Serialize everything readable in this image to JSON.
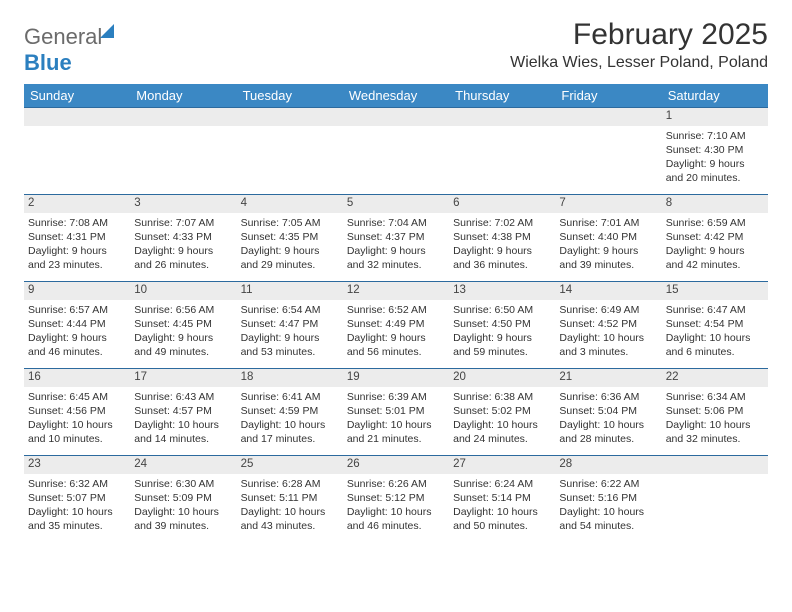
{
  "logo": {
    "word1": "General",
    "word2": "Blue"
  },
  "title": "February 2025",
  "location": "Wielka Wies, Lesser Poland, Poland",
  "colors": {
    "header_bg": "#3b88c4",
    "header_text": "#ffffff",
    "rule": "#2c6a9e",
    "daynum_bg": "#ececec",
    "logo_gray": "#6b6b6b",
    "logo_blue": "#2b7fbf"
  },
  "day_headers": [
    "Sunday",
    "Monday",
    "Tuesday",
    "Wednesday",
    "Thursday",
    "Friday",
    "Saturday"
  ],
  "weeks": [
    [
      {
        "day": "",
        "sunrise": "",
        "sunset": "",
        "daylight": ""
      },
      {
        "day": "",
        "sunrise": "",
        "sunset": "",
        "daylight": ""
      },
      {
        "day": "",
        "sunrise": "",
        "sunset": "",
        "daylight": ""
      },
      {
        "day": "",
        "sunrise": "",
        "sunset": "",
        "daylight": ""
      },
      {
        "day": "",
        "sunrise": "",
        "sunset": "",
        "daylight": ""
      },
      {
        "day": "",
        "sunrise": "",
        "sunset": "",
        "daylight": ""
      },
      {
        "day": "1",
        "sunrise": "Sunrise: 7:10 AM",
        "sunset": "Sunset: 4:30 PM",
        "daylight": "Daylight: 9 hours and 20 minutes."
      }
    ],
    [
      {
        "day": "2",
        "sunrise": "Sunrise: 7:08 AM",
        "sunset": "Sunset: 4:31 PM",
        "daylight": "Daylight: 9 hours and 23 minutes."
      },
      {
        "day": "3",
        "sunrise": "Sunrise: 7:07 AM",
        "sunset": "Sunset: 4:33 PM",
        "daylight": "Daylight: 9 hours and 26 minutes."
      },
      {
        "day": "4",
        "sunrise": "Sunrise: 7:05 AM",
        "sunset": "Sunset: 4:35 PM",
        "daylight": "Daylight: 9 hours and 29 minutes."
      },
      {
        "day": "5",
        "sunrise": "Sunrise: 7:04 AM",
        "sunset": "Sunset: 4:37 PM",
        "daylight": "Daylight: 9 hours and 32 minutes."
      },
      {
        "day": "6",
        "sunrise": "Sunrise: 7:02 AM",
        "sunset": "Sunset: 4:38 PM",
        "daylight": "Daylight: 9 hours and 36 minutes."
      },
      {
        "day": "7",
        "sunrise": "Sunrise: 7:01 AM",
        "sunset": "Sunset: 4:40 PM",
        "daylight": "Daylight: 9 hours and 39 minutes."
      },
      {
        "day": "8",
        "sunrise": "Sunrise: 6:59 AM",
        "sunset": "Sunset: 4:42 PM",
        "daylight": "Daylight: 9 hours and 42 minutes."
      }
    ],
    [
      {
        "day": "9",
        "sunrise": "Sunrise: 6:57 AM",
        "sunset": "Sunset: 4:44 PM",
        "daylight": "Daylight: 9 hours and 46 minutes."
      },
      {
        "day": "10",
        "sunrise": "Sunrise: 6:56 AM",
        "sunset": "Sunset: 4:45 PM",
        "daylight": "Daylight: 9 hours and 49 minutes."
      },
      {
        "day": "11",
        "sunrise": "Sunrise: 6:54 AM",
        "sunset": "Sunset: 4:47 PM",
        "daylight": "Daylight: 9 hours and 53 minutes."
      },
      {
        "day": "12",
        "sunrise": "Sunrise: 6:52 AM",
        "sunset": "Sunset: 4:49 PM",
        "daylight": "Daylight: 9 hours and 56 minutes."
      },
      {
        "day": "13",
        "sunrise": "Sunrise: 6:50 AM",
        "sunset": "Sunset: 4:50 PM",
        "daylight": "Daylight: 9 hours and 59 minutes."
      },
      {
        "day": "14",
        "sunrise": "Sunrise: 6:49 AM",
        "sunset": "Sunset: 4:52 PM",
        "daylight": "Daylight: 10 hours and 3 minutes."
      },
      {
        "day": "15",
        "sunrise": "Sunrise: 6:47 AM",
        "sunset": "Sunset: 4:54 PM",
        "daylight": "Daylight: 10 hours and 6 minutes."
      }
    ],
    [
      {
        "day": "16",
        "sunrise": "Sunrise: 6:45 AM",
        "sunset": "Sunset: 4:56 PM",
        "daylight": "Daylight: 10 hours and 10 minutes."
      },
      {
        "day": "17",
        "sunrise": "Sunrise: 6:43 AM",
        "sunset": "Sunset: 4:57 PM",
        "daylight": "Daylight: 10 hours and 14 minutes."
      },
      {
        "day": "18",
        "sunrise": "Sunrise: 6:41 AM",
        "sunset": "Sunset: 4:59 PM",
        "daylight": "Daylight: 10 hours and 17 minutes."
      },
      {
        "day": "19",
        "sunrise": "Sunrise: 6:39 AM",
        "sunset": "Sunset: 5:01 PM",
        "daylight": "Daylight: 10 hours and 21 minutes."
      },
      {
        "day": "20",
        "sunrise": "Sunrise: 6:38 AM",
        "sunset": "Sunset: 5:02 PM",
        "daylight": "Daylight: 10 hours and 24 minutes."
      },
      {
        "day": "21",
        "sunrise": "Sunrise: 6:36 AM",
        "sunset": "Sunset: 5:04 PM",
        "daylight": "Daylight: 10 hours and 28 minutes."
      },
      {
        "day": "22",
        "sunrise": "Sunrise: 6:34 AM",
        "sunset": "Sunset: 5:06 PM",
        "daylight": "Daylight: 10 hours and 32 minutes."
      }
    ],
    [
      {
        "day": "23",
        "sunrise": "Sunrise: 6:32 AM",
        "sunset": "Sunset: 5:07 PM",
        "daylight": "Daylight: 10 hours and 35 minutes."
      },
      {
        "day": "24",
        "sunrise": "Sunrise: 6:30 AM",
        "sunset": "Sunset: 5:09 PM",
        "daylight": "Daylight: 10 hours and 39 minutes."
      },
      {
        "day": "25",
        "sunrise": "Sunrise: 6:28 AM",
        "sunset": "Sunset: 5:11 PM",
        "daylight": "Daylight: 10 hours and 43 minutes."
      },
      {
        "day": "26",
        "sunrise": "Sunrise: 6:26 AM",
        "sunset": "Sunset: 5:12 PM",
        "daylight": "Daylight: 10 hours and 46 minutes."
      },
      {
        "day": "27",
        "sunrise": "Sunrise: 6:24 AM",
        "sunset": "Sunset: 5:14 PM",
        "daylight": "Daylight: 10 hours and 50 minutes."
      },
      {
        "day": "28",
        "sunrise": "Sunrise: 6:22 AM",
        "sunset": "Sunset: 5:16 PM",
        "daylight": "Daylight: 10 hours and 54 minutes."
      },
      {
        "day": "",
        "sunrise": "",
        "sunset": "",
        "daylight": ""
      }
    ]
  ]
}
